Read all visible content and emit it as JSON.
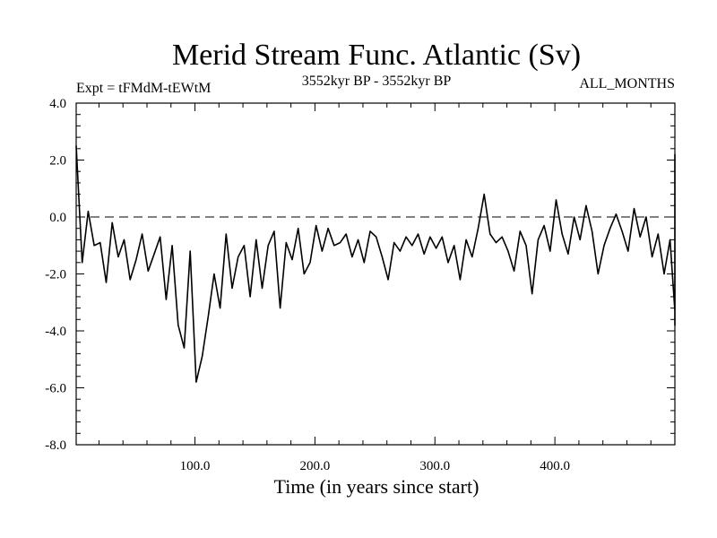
{
  "chart_data": {
    "type": "line",
    "title": "Merid Stream Func. Atlantic (Sv)",
    "subtitle_left": "Expt = tFMdM-tEWtM",
    "subtitle_center": "3552kyr BP - 3552kyr BP",
    "subtitle_right": "ALL_MONTHS",
    "xlabel": "Time (in years since start)",
    "ylabel": "",
    "xlim": [
      1,
      500
    ],
    "ylim": [
      -8,
      4
    ],
    "x_ticks": [
      100,
      200,
      300,
      400
    ],
    "x_tick_labels": [
      "100.0",
      "200.0",
      "300.0",
      "400.0"
    ],
    "y_ticks": [
      4,
      2,
      0,
      -2,
      -4,
      -6,
      -8
    ],
    "y_tick_labels": [
      "4.0",
      "2.0",
      "0.0",
      "-2.0",
      "-4.0",
      "-6.0",
      "-8.0"
    ],
    "reference_line": 0,
    "series": [
      {
        "name": "Merid Stream Func. Atlantic",
        "x_start": 1,
        "x_step": 5,
        "values": [
          2.5,
          -1.6,
          0.2,
          -1.0,
          -0.9,
          -2.3,
          -0.2,
          -1.4,
          -0.8,
          -2.2,
          -1.5,
          -0.6,
          -1.9,
          -1.3,
          -0.7,
          -2.9,
          -1.0,
          -3.8,
          -4.6,
          -1.2,
          -5.8,
          -4.9,
          -3.5,
          -2.0,
          -3.2,
          -0.6,
          -2.5,
          -1.4,
          -1.0,
          -2.8,
          -0.8,
          -2.5,
          -1.0,
          -0.5,
          -3.2,
          -0.9,
          -1.5,
          -0.4,
          -2.0,
          -1.6,
          -0.3,
          -1.2,
          -0.4,
          -1.0,
          -0.9,
          -0.6,
          -1.4,
          -0.8,
          -1.6,
          -0.5,
          -0.7,
          -1.4,
          -2.2,
          -0.9,
          -1.2,
          -0.7,
          -1.0,
          -0.6,
          -1.3,
          -0.7,
          -1.1,
          -0.7,
          -1.6,
          -1.0,
          -2.2,
          -0.8,
          -1.4,
          -0.4,
          0.8,
          -0.6,
          -0.9,
          -0.7,
          -1.2,
          -1.9,
          -0.5,
          -1.0,
          -2.7,
          -0.8,
          -0.3,
          -1.2,
          0.6,
          -0.6,
          -1.3,
          0.0,
          -0.8,
          0.4,
          -0.5,
          -2.0,
          -1.0,
          -0.4,
          0.1,
          -0.5,
          -1.2,
          0.3,
          -0.7,
          0.0,
          -1.4,
          -0.6,
          -2.0,
          -0.8,
          -3.3,
          -1.2,
          -0.5,
          -3.8,
          -2.0,
          -0.4,
          -1.5,
          -2.5,
          -0.5,
          -1.8,
          -0.9,
          -1.0,
          -0.5,
          -1.6,
          -0.9,
          -2.2,
          -0.5,
          -1.2,
          -0.1,
          -1.8,
          -0.6,
          0.0,
          -1.1,
          -0.4,
          -1.2,
          -0.6,
          0.8,
          1.0,
          2.0,
          1.3,
          0.9,
          2.2,
          1.8,
          1.2,
          0.6,
          1.5,
          2.0,
          1.6,
          1.0,
          0.4,
          0.6,
          -0.4,
          0.3,
          0.5,
          -0.8,
          0.2,
          -0.3,
          -0.6,
          -1.2,
          -0.5,
          -0.9,
          -0.3,
          -1.4,
          -2.6,
          -0.8,
          -0.4,
          0.2,
          -0.5,
          -0.2,
          -0.9,
          -0.3,
          -1.8,
          -0.7,
          -1.1,
          -0.3,
          -0.6,
          0.3,
          -0.5,
          -0.9,
          -0.2,
          -0.7,
          -0.4,
          -1.6,
          -0.8,
          -1.3,
          -0.6,
          -2.5,
          -1.0,
          -0.5,
          -1.4,
          -0.6,
          -1.9,
          -1.2,
          -0.7
        ]
      }
    ]
  }
}
